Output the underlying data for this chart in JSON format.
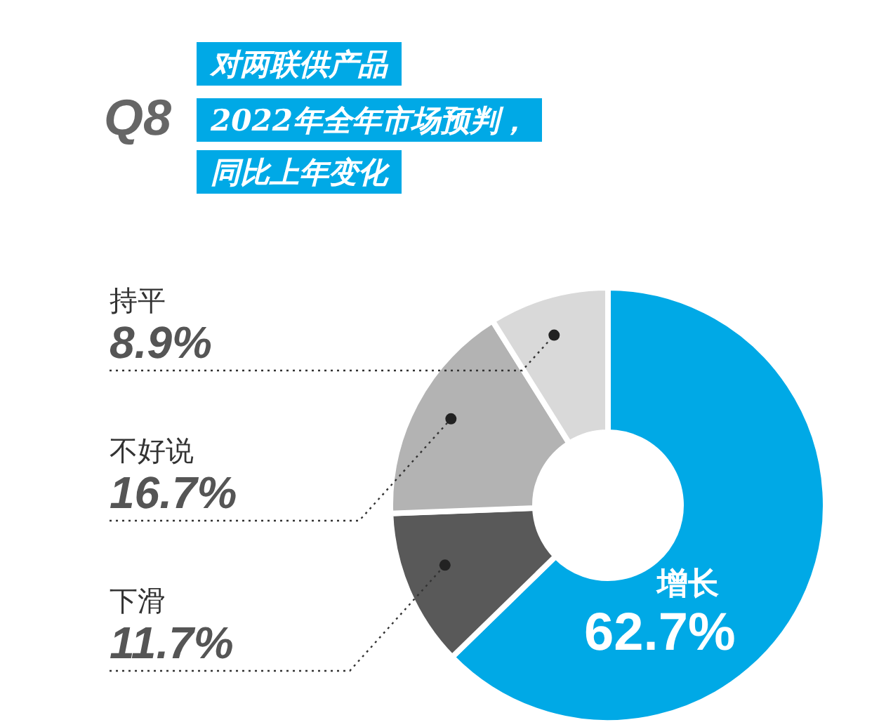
{
  "chart_data": {
    "type": "donut",
    "title": "对两联供产品",
    "subtitle": "2022年全年市场预判，同比上年变化",
    "annotations": [
      "Q8"
    ],
    "categories": [
      "增长",
      "下滑",
      "不好说",
      "持平"
    ],
    "values": [
      62.7,
      11.7,
      16.7,
      8.9
    ],
    "value_labels": [
      "62.7%",
      "11.7%",
      "16.7%",
      "8.9%"
    ],
    "colors": [
      "#00a9e6",
      "#595959",
      "#b3b3b3",
      "#d9d9d9"
    ]
  }
}
